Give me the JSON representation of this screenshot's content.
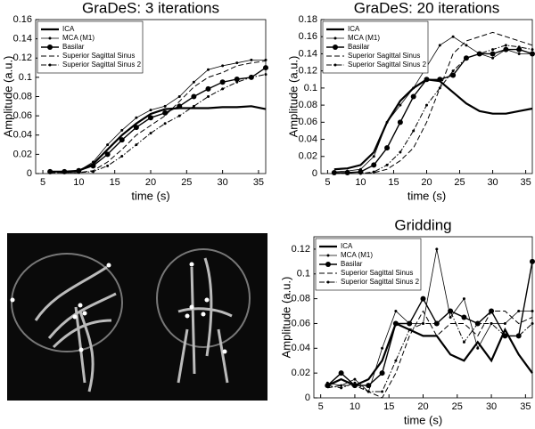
{
  "chart_data": [
    {
      "type": "line",
      "title": "GraDeS: 3 iterations",
      "x_label": "time (s)",
      "y_label": "Amplitude (a.u.)",
      "x": [
        6,
        8,
        10,
        12,
        14,
        16,
        18,
        20,
        22,
        24,
        26,
        28,
        30,
        32,
        34,
        36
      ],
      "xlim": [
        4,
        36
      ],
      "xticks": [
        5,
        10,
        15,
        20,
        25,
        30,
        35
      ],
      "ylim": [
        0,
        0.16
      ],
      "yticks": [
        0,
        0.02,
        0.04,
        0.06,
        0.08,
        0.1,
        0.12,
        0.14,
        0.16
      ],
      "legend": "upper left",
      "series": [
        {
          "name": "ICA",
          "color": "#000000",
          "linestyle": "solid",
          "linewidth": 2.2,
          "marker": "none",
          "values": [
            0.002,
            0.002,
            0.003,
            0.01,
            0.025,
            0.04,
            0.052,
            0.062,
            0.067,
            0.068,
            0.068,
            0.068,
            0.069,
            0.069,
            0.07,
            0.067
          ]
        },
        {
          "name": "MCA (M1)",
          "color": "#000000",
          "linestyle": "solid",
          "linewidth": 0.8,
          "marker": "small",
          "values": [
            0.002,
            0.002,
            0.003,
            0.012,
            0.03,
            0.045,
            0.058,
            0.066,
            0.07,
            0.08,
            0.095,
            0.108,
            0.112,
            0.115,
            0.118,
            0.118
          ]
        },
        {
          "name": "Basilar",
          "color": "#000000",
          "linestyle": "solid",
          "linewidth": 1.4,
          "marker": "large",
          "values": [
            0.002,
            0.002,
            0.003,
            0.008,
            0.02,
            0.035,
            0.048,
            0.058,
            0.063,
            0.07,
            0.08,
            0.088,
            0.095,
            0.098,
            0.1,
            0.11
          ]
        },
        {
          "name": "Superior Sagittal Sinus",
          "color": "#000000",
          "linestyle": "dashed",
          "linewidth": 1,
          "marker": "none",
          "values": [
            0.001,
            0.001,
            0.001,
            0.003,
            0.012,
            0.025,
            0.04,
            0.05,
            0.06,
            0.075,
            0.09,
            0.1,
            0.105,
            0.112,
            0.115,
            0.117
          ]
        },
        {
          "name": "Superior Sagittal Sinus 2",
          "color": "#000000",
          "linestyle": "dashdot",
          "linewidth": 1,
          "marker": "small",
          "values": [
            0.001,
            0.001,
            0.001,
            0.002,
            0.008,
            0.018,
            0.03,
            0.042,
            0.052,
            0.06,
            0.07,
            0.08,
            0.088,
            0.095,
            0.1,
            0.103
          ]
        }
      ]
    },
    {
      "type": "line",
      "title": "GraDeS: 20 iterations",
      "x_label": "time (s)",
      "y_label": "Amplitude (a.u.)",
      "x": [
        6,
        8,
        10,
        12,
        14,
        16,
        18,
        20,
        22,
        24,
        26,
        28,
        30,
        32,
        34,
        36
      ],
      "xlim": [
        4,
        36
      ],
      "xticks": [
        5,
        10,
        15,
        20,
        25,
        30,
        35
      ],
      "ylim": [
        0,
        0.18
      ],
      "yticks": [
        0,
        0.02,
        0.04,
        0.06,
        0.08,
        0.1,
        0.12,
        0.14,
        0.16,
        0.18
      ],
      "legend": "upper left",
      "series": [
        {
          "name": "ICA",
          "color": "#000000",
          "linestyle": "solid",
          "linewidth": 2.2,
          "marker": "none",
          "values": [
            0.005,
            0.006,
            0.01,
            0.025,
            0.06,
            0.085,
            0.1,
            0.11,
            0.108,
            0.095,
            0.082,
            0.073,
            0.07,
            0.07,
            0.073,
            0.076
          ]
        },
        {
          "name": "MCA (M1)",
          "color": "#000000",
          "linestyle": "solid",
          "linewidth": 0.8,
          "marker": "small",
          "values": [
            0.002,
            0.003,
            0.005,
            0.02,
            0.06,
            0.08,
            0.1,
            0.125,
            0.15,
            0.16,
            0.15,
            0.14,
            0.135,
            0.145,
            0.14,
            0.14
          ]
        },
        {
          "name": "Basilar",
          "color": "#000000",
          "linestyle": "solid",
          "linewidth": 1.4,
          "marker": "large",
          "values": [
            0.001,
            0.001,
            0.002,
            0.01,
            0.03,
            0.06,
            0.09,
            0.11,
            0.11,
            0.115,
            0.135,
            0.14,
            0.14,
            0.145,
            0.145,
            0.14
          ]
        },
        {
          "name": "Superior Sagittal Sinus",
          "color": "#000000",
          "linestyle": "dashed",
          "linewidth": 1,
          "marker": "none",
          "values": [
            0,
            0,
            0,
            0.001,
            0.005,
            0.015,
            0.03,
            0.06,
            0.1,
            0.14,
            0.155,
            0.16,
            0.165,
            0.16,
            0.155,
            0.15
          ]
        },
        {
          "name": "Superior Sagittal Sinus 2",
          "color": "#000000",
          "linestyle": "dashdot",
          "linewidth": 1,
          "marker": "small",
          "values": [
            0,
            0,
            0,
            0.002,
            0.01,
            0.025,
            0.05,
            0.08,
            0.1,
            0.12,
            0.135,
            0.14,
            0.145,
            0.15,
            0.148,
            0.145
          ]
        }
      ]
    },
    {
      "type": "line",
      "title": "Gridding",
      "x_label": "time (s)",
      "y_label": "Amplitude (a.u.)",
      "x": [
        6,
        8,
        10,
        12,
        14,
        16,
        18,
        20,
        22,
        24,
        26,
        28,
        30,
        32,
        34,
        36
      ],
      "xlim": [
        4,
        36
      ],
      "xticks": [
        5,
        10,
        15,
        20,
        25,
        30,
        35
      ],
      "ylim": [
        0,
        0.13
      ],
      "yticks": [
        0,
        0.02,
        0.04,
        0.06,
        0.08,
        0.1,
        0.12
      ],
      "legend": "upper left",
      "series": [
        {
          "name": "ICA",
          "color": "#000000",
          "linestyle": "solid",
          "linewidth": 2.2,
          "marker": "none",
          "values": [
            0.01,
            0.015,
            0.01,
            0.015,
            0.03,
            0.06,
            0.055,
            0.05,
            0.05,
            0.035,
            0.03,
            0.045,
            0.03,
            0.055,
            0.035,
            0.02
          ]
        },
        {
          "name": "MCA (M1)",
          "color": "#000000",
          "linestyle": "solid",
          "linewidth": 0.8,
          "marker": "small",
          "values": [
            0.012,
            0.01,
            0.015,
            0.005,
            0.04,
            0.07,
            0.06,
            0.06,
            0.12,
            0.065,
            0.08,
            0.04,
            0.06,
            0.06,
            0.07,
            0.07
          ]
        },
        {
          "name": "Basilar",
          "color": "#000000",
          "linestyle": "solid",
          "linewidth": 1.4,
          "marker": "large",
          "values": [
            0.01,
            0.02,
            0.01,
            0.01,
            0.02,
            0.06,
            0.06,
            0.08,
            0.06,
            0.07,
            0.065,
            0.06,
            0.07,
            0.05,
            0.05,
            0.11
          ]
        },
        {
          "name": "Superior Sagittal Sinus",
          "color": "#000000",
          "linestyle": "dashed",
          "linewidth": 1,
          "marker": "none",
          "values": [
            0.008,
            0.01,
            0.01,
            0.005,
            0,
            0.02,
            0.05,
            0.07,
            0.05,
            0.06,
            0.06,
            0.05,
            0.07,
            0.07,
            0.06,
            0.065
          ]
        },
        {
          "name": "Superior Sagittal Sinus 2",
          "color": "#000000",
          "linestyle": "dashdot",
          "linewidth": 1,
          "marker": "small",
          "values": [
            0.01,
            0.008,
            0.012,
            0.005,
            0.005,
            0.03,
            0.055,
            0.06,
            0.06,
            0.07,
            0.045,
            0.06,
            0.06,
            0.05,
            0.05,
            0.06
          ]
        }
      ]
    }
  ]
}
